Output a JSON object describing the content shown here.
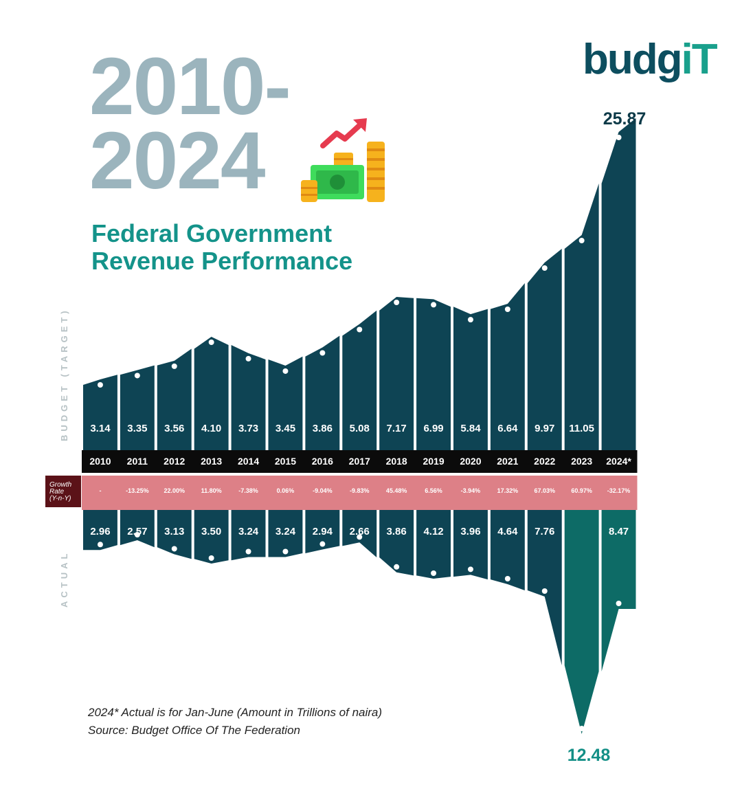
{
  "header": {
    "title_line1": "2010-",
    "title_line2": "2024",
    "subtitle_line1": "Federal Government",
    "subtitle_line2": "Revenue Performance",
    "logo_main": "budg",
    "logo_accent": "iT"
  },
  "axis_labels": {
    "top": "BUDGET (TARGET)",
    "bottom": "ACTUAL"
  },
  "growth_row_label": {
    "line1": "Growth",
    "line2": "Rate",
    "line3": "(Y-n-Y)"
  },
  "notes": {
    "line1": "2024* Actual is for Jan-June (Amount in Trillions of naira)",
    "line2": "Source: Budget Office Of The Federation"
  },
  "colors": {
    "budget": "#0e4454",
    "actual": "#0d6b66",
    "year_band": "#0b0b0b",
    "growth_band": "#d76a72",
    "growth_label_bg": "#5b1218",
    "title": "#9bb4bd",
    "subtitle": "#14938a",
    "logo": "#0d4e5f",
    "logo_accent": "#19a08c",
    "peak_budget_label": "#0d3a48",
    "peak_actual_label": "#138f86"
  },
  "icons": [
    "trend-up-arrow-icon",
    "cash-and-coins-icon"
  ],
  "chart_data": {
    "type": "bar",
    "title": "Federal Government Revenue Performance",
    "subtitle": "2010-2024",
    "categories": [
      "2010",
      "2011",
      "2012",
      "2013",
      "2014",
      "2015",
      "2016",
      "2017",
      "2018",
      "2019",
      "2020",
      "2021",
      "2022",
      "2023",
      "2024*"
    ],
    "series": [
      {
        "name": "BUDGET (TARGET)",
        "values": [
          3.14,
          3.35,
          3.56,
          4.1,
          3.73,
          3.45,
          3.86,
          5.08,
          7.17,
          6.99,
          5.84,
          6.64,
          9.97,
          11.05,
          25.87
        ],
        "labels": [
          "3.14",
          "3.35",
          "3.56",
          "4.10",
          "3.73",
          "3.45",
          "3.86",
          "5.08",
          "7.17",
          "6.99",
          "5.84",
          "6.64",
          "9.97",
          "11.05",
          "25.87"
        ]
      },
      {
        "name": "ACTUAL",
        "values": [
          2.96,
          2.57,
          3.13,
          3.5,
          3.24,
          3.24,
          2.94,
          2.66,
          3.86,
          4.12,
          3.96,
          4.64,
          7.76,
          12.48,
          8.47
        ],
        "labels": [
          "2.96",
          "2.57",
          "3.13",
          "3.50",
          "3.24",
          "3.24",
          "2.94",
          "2.66",
          "3.86",
          "4.12",
          "3.96",
          "4.64",
          "7.76",
          "12.48",
          "8.47"
        ]
      }
    ],
    "growth_rate": [
      "-",
      "-13.25%",
      "22.00%",
      "11.80%",
      "-7.38%",
      "0.06%",
      "-9.04%",
      "-9.83%",
      "45.48%",
      "6.56%",
      "-3.94%",
      "17.32%",
      "67.03%",
      "60.97%",
      "-32.17%"
    ],
    "unit": "Trillions of naira",
    "layout": "diverging: budget above, actual below",
    "grid": false,
    "legend": "none"
  }
}
